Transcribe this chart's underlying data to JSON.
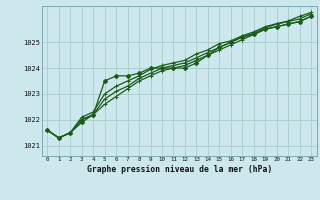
{
  "xlabel": "Graphe pression niveau de la mer (hPa)",
  "bg_color": "#cce8ec",
  "grid_color": "#aacccc",
  "line_color": "#1a5c1a",
  "xlim": [
    -0.5,
    23.5
  ],
  "ylim": [
    1020.6,
    1026.4
  ],
  "yticks": [
    1021,
    1022,
    1023,
    1024,
    1025
  ],
  "xtick_labels": [
    "0",
    "1",
    "2",
    "3",
    "4",
    "5",
    "6",
    "7",
    "8",
    "9",
    "10",
    "11",
    "12",
    "13",
    "14",
    "15",
    "16",
    "17",
    "18",
    "19",
    "20",
    "21",
    "22",
    "23"
  ],
  "series": [
    [
      1021.6,
      1021.3,
      1021.5,
      1021.9,
      1022.2,
      1023.5,
      1023.7,
      1023.7,
      1023.8,
      1024.0,
      1024.0,
      1024.0,
      1024.0,
      1024.2,
      1024.5,
      1024.8,
      1025.0,
      1025.2,
      1025.3,
      1025.5,
      1025.6,
      1025.7,
      1025.8,
      1026.0
    ],
    [
      1021.6,
      1021.3,
      1021.5,
      1022.0,
      1022.2,
      1022.6,
      1022.9,
      1023.2,
      1023.5,
      1023.7,
      1023.9,
      1024.0,
      1024.1,
      1024.3,
      1024.5,
      1024.7,
      1024.9,
      1025.1,
      1025.3,
      1025.5,
      1025.6,
      1025.7,
      1025.8,
      1026.0
    ],
    [
      1021.6,
      1021.3,
      1021.5,
      1022.0,
      1022.2,
      1022.8,
      1023.1,
      1023.3,
      1023.6,
      1023.8,
      1024.0,
      1024.1,
      1024.2,
      1024.4,
      1024.6,
      1024.8,
      1025.0,
      1025.2,
      1025.35,
      1025.55,
      1025.7,
      1025.8,
      1025.9,
      1026.1
    ],
    [
      1021.6,
      1021.3,
      1021.5,
      1022.1,
      1022.3,
      1023.0,
      1023.3,
      1023.5,
      1023.7,
      1023.95,
      1024.1,
      1024.2,
      1024.3,
      1024.55,
      1024.7,
      1024.95,
      1025.05,
      1025.25,
      1025.4,
      1025.6,
      1025.72,
      1025.82,
      1026.0,
      1026.15
    ]
  ],
  "diamond_series": 0,
  "cross_series": [
    1,
    2,
    3
  ]
}
